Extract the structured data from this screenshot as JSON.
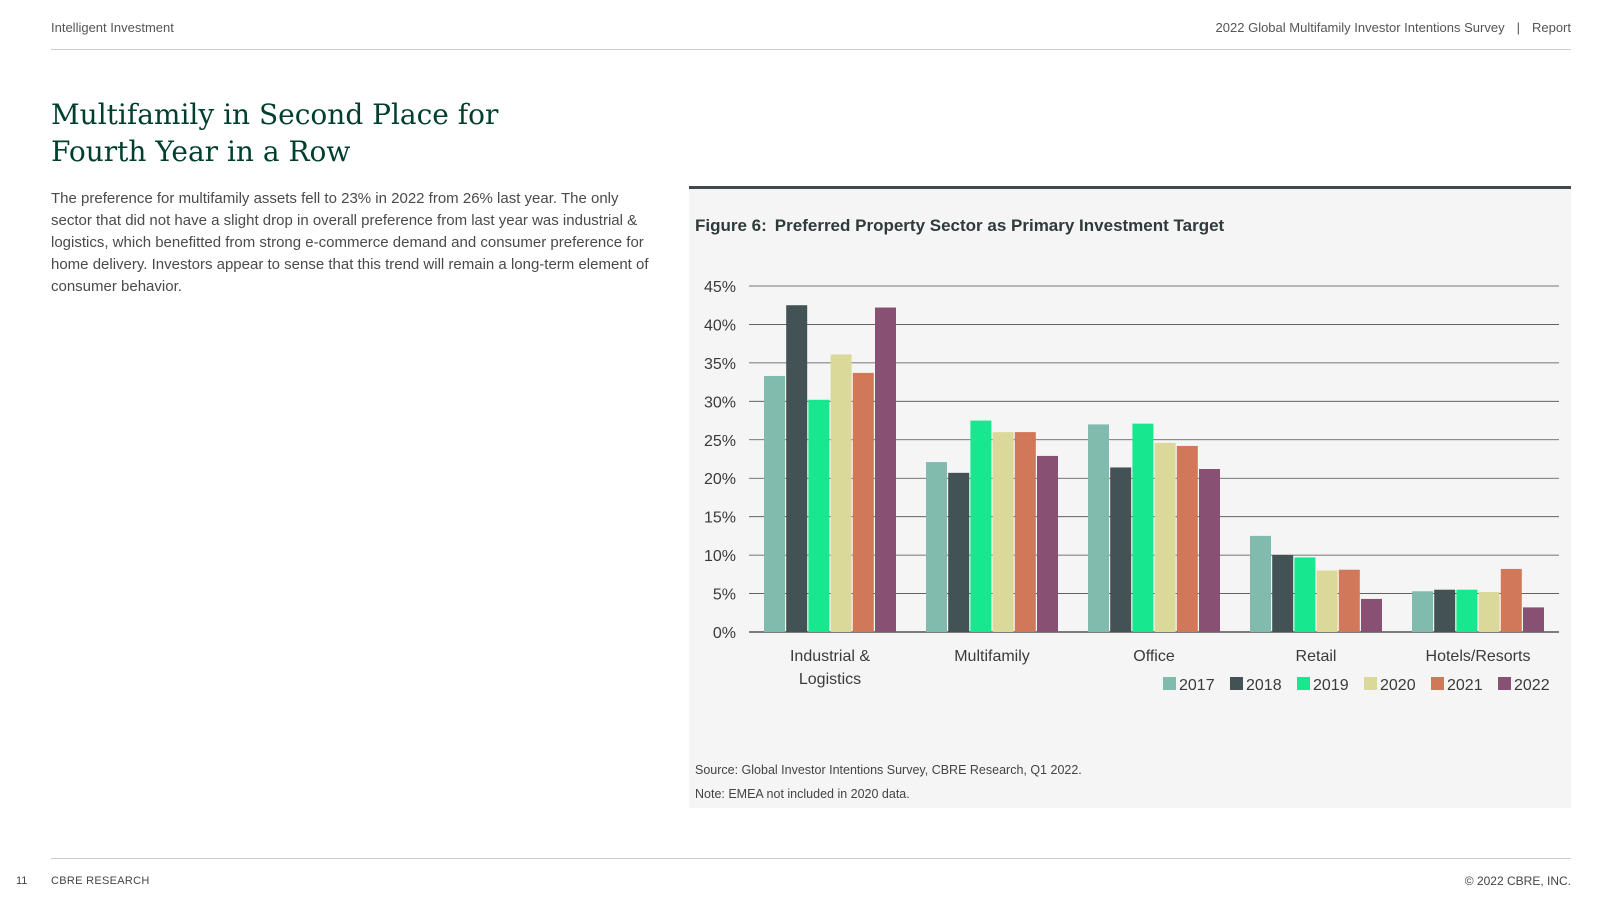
{
  "header": {
    "left": "Intelligent Investment",
    "right_title": "2022 Global Multifamily Investor Intentions Survey",
    "separator": "|",
    "right_label": "Report"
  },
  "page": {
    "title_line1": "Multifamily in Second Place for",
    "title_line2": "Fourth Year in a Row",
    "body": "The preference for multifamily assets fell to 23% in 2022 from 26% last year. The only sector that did not have a slight drop in overall preference from last year was industrial & logistics, which benefitted from strong e-commerce demand and consumer preference for home delivery. Investors appear to sense that this trend will remain a long-term element of consumer behavior."
  },
  "figure": {
    "number": "Figure 6:",
    "title": "Preferred Property Sector as Primary Investment Target",
    "source": "Source: Global Investor Intentions Survey, CBRE Research, Q1 2022.",
    "note": "Note: EMEA not included in 2020 data."
  },
  "chart_data": {
    "type": "bar",
    "title": "Preferred Property Sector as Primary Investment Target",
    "xlabel": "",
    "ylabel": "",
    "ylim": [
      0,
      45
    ],
    "yticks": [
      "0%",
      "5%",
      "10%",
      "15%",
      "20%",
      "25%",
      "30%",
      "35%",
      "40%",
      "45%"
    ],
    "ytick_values": [
      0,
      5,
      10,
      15,
      20,
      25,
      30,
      35,
      40,
      45
    ],
    "grid": true,
    "legend_position": "bottom-right",
    "categories": [
      [
        "Industrial &",
        "Logistics"
      ],
      [
        "Multifamily"
      ],
      [
        "Office"
      ],
      [
        "Retail"
      ],
      [
        "Hotels/Resorts"
      ]
    ],
    "series": [
      {
        "name": "2017",
        "color": "#80bbad",
        "values": [
          33.3,
          22.1,
          27.0,
          12.5,
          5.3
        ]
      },
      {
        "name": "2018",
        "color": "#435254",
        "values": [
          42.5,
          20.7,
          21.4,
          10.0,
          5.5
        ]
      },
      {
        "name": "2019",
        "color": "#17e88f",
        "values": [
          30.2,
          27.5,
          27.1,
          9.7,
          5.5
        ]
      },
      {
        "name": "2020",
        "color": "#dbd99a",
        "values": [
          36.1,
          26.0,
          24.6,
          8.0,
          5.2
        ]
      },
      {
        "name": "2021",
        "color": "#d2785a",
        "values": [
          33.7,
          26.0,
          24.2,
          8.1,
          8.2
        ]
      },
      {
        "name": "2022",
        "color": "#885073",
        "values": [
          42.2,
          22.9,
          21.2,
          4.3,
          3.2
        ]
      }
    ]
  },
  "footer": {
    "page_number": "11",
    "left": "CBRE RESEARCH",
    "right": "© 2022 CBRE, INC."
  }
}
